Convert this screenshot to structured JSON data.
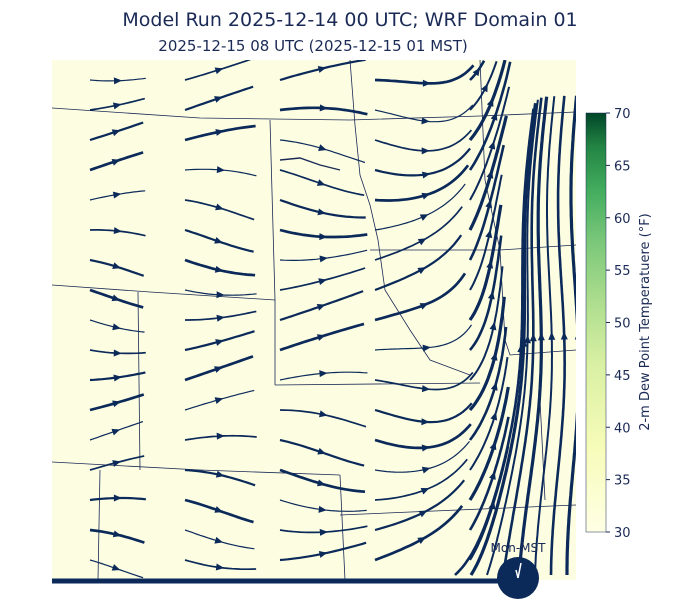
{
  "title": "Model Run 2025-12-14 00 UTC; WRF Domain 01",
  "subtitle": "2025-12-15 08 UTC  (2025-12-15 01 MST)",
  "colorbar": {
    "label": "2-m Dew Point Temperatuere (°F)",
    "lim": [
      30,
      70
    ],
    "ticks": [
      30,
      35,
      40,
      45,
      50,
      55,
      60,
      65,
      70
    ]
  },
  "clock_label": "Mon-MST"
}
